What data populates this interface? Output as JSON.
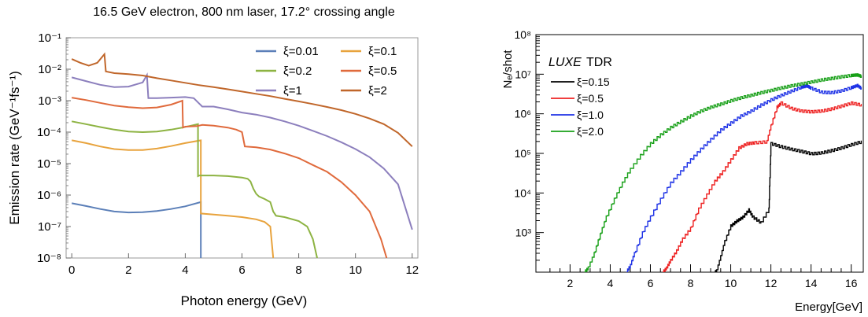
{
  "chart_data": [
    {
      "type": "line",
      "title": "16.5 GeV electron, 800 nm laser, 17.2° crossing angle",
      "xlabel": "Photon energy (GeV)",
      "ylabel": "Emission rate (GeV⁻¹fs⁻¹)",
      "xlim": [
        -0.2,
        12.2
      ],
      "ylim": [
        1e-08,
        0.1
      ],
      "yscale": "log",
      "x_ticks": [
        "0",
        "2",
        "4",
        "6",
        "8",
        "10",
        "12"
      ],
      "y_ticks": [
        "10⁻⁸",
        "10⁻⁷",
        "10⁻⁶",
        "10⁻⁵",
        "10⁻⁴",
        "10⁻³",
        "10⁻²",
        "10⁻¹"
      ],
      "legend_position": "top-right",
      "series": [
        {
          "name": "ξ=0.01",
          "color": "#5b7fb8",
          "points": [
            [
              0,
              5.5e-07
            ],
            [
              0.5,
              4.5e-07
            ],
            [
              1,
              3.6e-07
            ],
            [
              1.5,
              3e-07
            ],
            [
              2,
              2.8e-07
            ],
            [
              2.5,
              2.85e-07
            ],
            [
              3,
              3.1e-07
            ],
            [
              3.5,
              3.6e-07
            ],
            [
              4,
              4.4e-07
            ],
            [
              4.55,
              6e-07
            ],
            [
              4.55,
              1e-08
            ]
          ]
        },
        {
          "name": "ξ=0.1",
          "color": "#e8a33d",
          "points": [
            [
              0,
              5.5e-05
            ],
            [
              0.5,
              4.5e-05
            ],
            [
              1,
              3.5e-05
            ],
            [
              1.5,
              2.9e-05
            ],
            [
              2,
              2.7e-05
            ],
            [
              2.5,
              2.7e-05
            ],
            [
              3,
              3e-05
            ],
            [
              3.5,
              3.6e-05
            ],
            [
              4,
              4.5e-05
            ],
            [
              4.55,
              5.5e-05
            ],
            [
              4.55,
              2.6e-07
            ],
            [
              5,
              2.4e-07
            ],
            [
              5.5,
              2.2e-07
            ],
            [
              6,
              2e-07
            ],
            [
              6.5,
              1.7e-07
            ],
            [
              6.8,
              1.4e-07
            ],
            [
              7,
              1e-07
            ],
            [
              7.1,
              1e-08
            ]
          ]
        },
        {
          "name": "ξ=0.2",
          "color": "#8db342",
          "points": [
            [
              0,
              0.00022
            ],
            [
              0.5,
              0.00018
            ],
            [
              1,
              0.000145
            ],
            [
              1.5,
              0.00012
            ],
            [
              2,
              0.000105
            ],
            [
              2.5,
              0.0001
            ],
            [
              3,
              0.000105
            ],
            [
              3.5,
              0.00012
            ],
            [
              3.9,
              0.00014
            ],
            [
              4.2,
              0.00016
            ],
            [
              4.45,
              0.00018
            ],
            [
              4.45,
              4e-06
            ],
            [
              4.5,
              4.2e-06
            ],
            [
              5,
              4.2e-06
            ],
            [
              5.5,
              4e-06
            ],
            [
              6,
              3.6e-06
            ],
            [
              6.2,
              3.3e-06
            ],
            [
              6.3,
              2.7e-06
            ],
            [
              6.4,
              1.6e-06
            ],
            [
              6.5,
              1.1e-06
            ],
            [
              6.6,
              9e-07
            ],
            [
              6.8,
              7.5e-07
            ],
            [
              7,
              6e-07
            ],
            [
              7.1,
              3e-07
            ],
            [
              7.2,
              2.2e-07
            ],
            [
              7.5,
              2e-07
            ],
            [
              8,
              1.5e-07
            ],
            [
              8.3,
              1e-07
            ],
            [
              8.5,
              4e-08
            ],
            [
              8.65,
              1e-08
            ]
          ]
        },
        {
          "name": "ξ=0.5",
          "color": "#e06a3c",
          "points": [
            [
              0,
              0.00125
            ],
            [
              0.5,
              0.00105
            ],
            [
              1,
              0.00085
            ],
            [
              1.5,
              0.0007
            ],
            [
              2,
              0.00062
            ],
            [
              2.5,
              0.00058
            ],
            [
              3,
              0.00061
            ],
            [
              3.5,
              0.00075
            ],
            [
              3.9,
              0.001
            ],
            [
              3.92,
              0.00014
            ],
            [
              4,
              0.00015
            ],
            [
              4.4,
              0.000155
            ],
            [
              4.6,
              0.00017
            ],
            [
              5,
              0.00016
            ],
            [
              5.5,
              0.00014
            ],
            [
              5.8,
              0.00012
            ],
            [
              6,
              0.0001
            ],
            [
              6.1,
              3.5e-05
            ],
            [
              6.5,
              3.3e-05
            ],
            [
              7,
              2.8e-05
            ],
            [
              7.5,
              2.1e-05
            ],
            [
              8,
              1.5e-05
            ],
            [
              8.5,
              9e-06
            ],
            [
              9,
              5.5e-06
            ],
            [
              9.5,
              2.6e-06
            ],
            [
              10,
              1e-06
            ],
            [
              10.5,
              3e-07
            ],
            [
              10.9,
              4e-08
            ],
            [
              11.1,
              1e-08
            ]
          ]
        },
        {
          "name": "ξ=1",
          "color": "#8c7fbd",
          "points": [
            [
              0,
              0.0055
            ],
            [
              0.5,
              0.0042
            ],
            [
              1,
              0.0032
            ],
            [
              1.5,
              0.0027
            ],
            [
              2,
              0.0028
            ],
            [
              2.5,
              0.0038
            ],
            [
              2.65,
              0.0065
            ],
            [
              2.7,
              0.0012
            ],
            [
              3,
              0.0012
            ],
            [
              3.5,
              0.00125
            ],
            [
              4,
              0.0013
            ],
            [
              4.3,
              0.0012
            ],
            [
              4.5,
              0.0008
            ],
            [
              4.6,
              0.00065
            ],
            [
              5,
              0.00065
            ],
            [
              5.5,
              0.00053
            ],
            [
              6,
              0.00042
            ],
            [
              6.5,
              0.00036
            ],
            [
              7,
              0.00029
            ],
            [
              7.5,
              0.00022
            ],
            [
              8,
              0.00016
            ],
            [
              8.5,
              0.00011
            ],
            [
              9,
              7.5e-05
            ],
            [
              9.5,
              4.8e-05
            ],
            [
              10,
              2.9e-05
            ],
            [
              10.5,
              1.6e-05
            ],
            [
              11,
              7e-06
            ],
            [
              11.5,
              2.2e-06
            ],
            [
              12,
              8e-08
            ]
          ]
        },
        {
          "name": "ξ=2",
          "color": "#c0662a",
          "points": [
            [
              0,
              0.021
            ],
            [
              0.3,
              0.016
            ],
            [
              0.6,
              0.013
            ],
            [
              0.9,
              0.016
            ],
            [
              1.15,
              0.03
            ],
            [
              1.2,
              0.0085
            ],
            [
              1.5,
              0.0075
            ],
            [
              2,
              0.007
            ],
            [
              2.5,
              0.0063
            ],
            [
              3,
              0.0052
            ],
            [
              3.5,
              0.0044
            ],
            [
              4,
              0.0037
            ],
            [
              4.5,
              0.0031
            ],
            [
              5,
              0.0027
            ],
            [
              5.5,
              0.0023
            ],
            [
              6,
              0.00195
            ],
            [
              6.5,
              0.00165
            ],
            [
              7,
              0.0014
            ],
            [
              7.5,
              0.00115
            ],
            [
              8,
              0.00095
            ],
            [
              8.5,
              0.00078
            ],
            [
              9,
              0.00063
            ],
            [
              9.5,
              0.0005
            ],
            [
              10,
              0.00038
            ],
            [
              10.5,
              0.00027
            ],
            [
              11,
              0.00018
            ],
            [
              11.5,
              9.5e-05
            ],
            [
              12,
              3.5e-05
            ]
          ]
        }
      ]
    },
    {
      "type": "line",
      "title": "",
      "xlabel": "Energy[GeV]",
      "ylabel": "Nₑ/shot",
      "xlim": [
        0.3,
        16.6
      ],
      "ylim": [
        100,
        100000000.0
      ],
      "yscale": "log",
      "x_ticks": [
        "2",
        "4",
        "6",
        "8",
        "10",
        "12",
        "14",
        "16"
      ],
      "y_ticks": [
        "10³",
        "10⁴",
        "10⁵",
        "10⁶",
        "10⁷",
        "10⁸"
      ],
      "legend_title_italic": "LUXE",
      "legend_title": "TDR",
      "legend_position": "top-left",
      "series": [
        {
          "name": "ξ=0.15",
          "color": "#000000",
          "points": [
            [
              9.2,
              100
            ],
            [
              9.3,
              110
            ],
            [
              9.5,
              250
            ],
            [
              9.7,
              600
            ],
            [
              10,
              1500
            ],
            [
              10.3,
              2000
            ],
            [
              10.6,
              2500
            ],
            [
              10.9,
              3800
            ],
            [
              11.1,
              2500
            ],
            [
              11.5,
              1800
            ],
            [
              11.9,
              4000
            ],
            [
              12,
              180000.0
            ],
            [
              12.5,
              150000.0
            ],
            [
              13,
              130000.0
            ],
            [
              13.5,
              115000.0
            ],
            [
              14,
              100000.0
            ],
            [
              14.5,
              105000.0
            ],
            [
              15,
              120000.0
            ],
            [
              15.5,
              140000.0
            ],
            [
              16,
              170000.0
            ],
            [
              16.5,
              200000.0
            ]
          ]
        },
        {
          "name": "ξ=0.5",
          "color": "#ee2222",
          "points": [
            [
              6.6,
              100
            ],
            [
              6.8,
              130
            ],
            [
              7,
              200
            ],
            [
              7.3,
              350
            ],
            [
              7.6,
              700
            ],
            [
              8,
              1300
            ],
            [
              8.4,
              4000
            ],
            [
              8.8,
              9000
            ],
            [
              9.2,
              20000.0
            ],
            [
              9.6,
              35000.0
            ],
            [
              10,
              70000.0
            ],
            [
              10.4,
              140000.0
            ],
            [
              10.8,
              180000.0
            ],
            [
              11.2,
              190000.0
            ],
            [
              11.8,
              200000.0
            ],
            [
              12,
              500000.0
            ],
            [
              12.3,
              1500000.0
            ],
            [
              12.5,
              1900000.0
            ],
            [
              13,
              1400000.0
            ],
            [
              13.5,
              1200000.0
            ],
            [
              14,
              1150000.0
            ],
            [
              14.5,
              1200000.0
            ],
            [
              15,
              1350000.0
            ],
            [
              15.5,
              1600000.0
            ],
            [
              16,
              1900000.0
            ],
            [
              16.5,
              1700000.0
            ]
          ]
        },
        {
          "name": "ξ=1.0",
          "color": "#1f33e6",
          "points": [
            [
              4.8,
              100
            ],
            [
              5,
              150
            ],
            [
              5.2,
              300
            ],
            [
              5.6,
              1000
            ],
            [
              6,
              2500
            ],
            [
              6.5,
              7000
            ],
            [
              7,
              18000.0
            ],
            [
              7.5,
              35000.0
            ],
            [
              8,
              70000.0
            ],
            [
              8.5,
              130000.0
            ],
            [
              9,
              230000.0
            ],
            [
              9.5,
              400000.0
            ],
            [
              10,
              600000.0
            ],
            [
              10.5,
              900000.0
            ],
            [
              11,
              1200000.0
            ],
            [
              11.5,
              1700000.0
            ],
            [
              12,
              2300000.0
            ],
            [
              12.5,
              3000000.0
            ],
            [
              13,
              3800000.0
            ],
            [
              13.5,
              4800000.0
            ],
            [
              13.8,
              5200000.0
            ],
            [
              14,
              4500000.0
            ],
            [
              14.5,
              3600000.0
            ],
            [
              15,
              3500000.0
            ],
            [
              15.5,
              3900000.0
            ],
            [
              16,
              4700000.0
            ],
            [
              16.3,
              5300000.0
            ],
            [
              16.5,
              4500000.0
            ]
          ]
        },
        {
          "name": "ξ=2.0",
          "color": "#18a018",
          "points": [
            [
              2.7,
              100
            ],
            [
              2.9,
              130
            ],
            [
              3.2,
              300
            ],
            [
              3.5,
              900
            ],
            [
              3.8,
              2500
            ],
            [
              4.2,
              7000
            ],
            [
              4.6,
              18000.0
            ],
            [
              5,
              40000.0
            ],
            [
              5.5,
              90000.0
            ],
            [
              6,
              180000.0
            ],
            [
              6.5,
              300000.0
            ],
            [
              7,
              460000.0
            ],
            [
              7.5,
              650000.0
            ],
            [
              8,
              900000.0
            ],
            [
              8.5,
              1200000.0
            ],
            [
              9,
              1500000.0
            ],
            [
              9.5,
              1800000.0
            ],
            [
              10,
              2200000.0
            ],
            [
              10.5,
              2600000.0
            ],
            [
              11,
              3000000.0
            ],
            [
              11.5,
              3500000.0
            ],
            [
              12,
              4000000.0
            ],
            [
              12.5,
              4600000.0
            ],
            [
              13,
              5200000.0
            ],
            [
              13.5,
              5800000.0
            ],
            [
              14,
              6500000.0
            ],
            [
              14.5,
              7300000.0
            ],
            [
              15,
              8000000.0
            ],
            [
              15.5,
              8800000.0
            ],
            [
              16,
              9500000.0
            ],
            [
              16.3,
              9800000.0
            ],
            [
              16.5,
              9000000.0
            ]
          ]
        }
      ]
    }
  ]
}
